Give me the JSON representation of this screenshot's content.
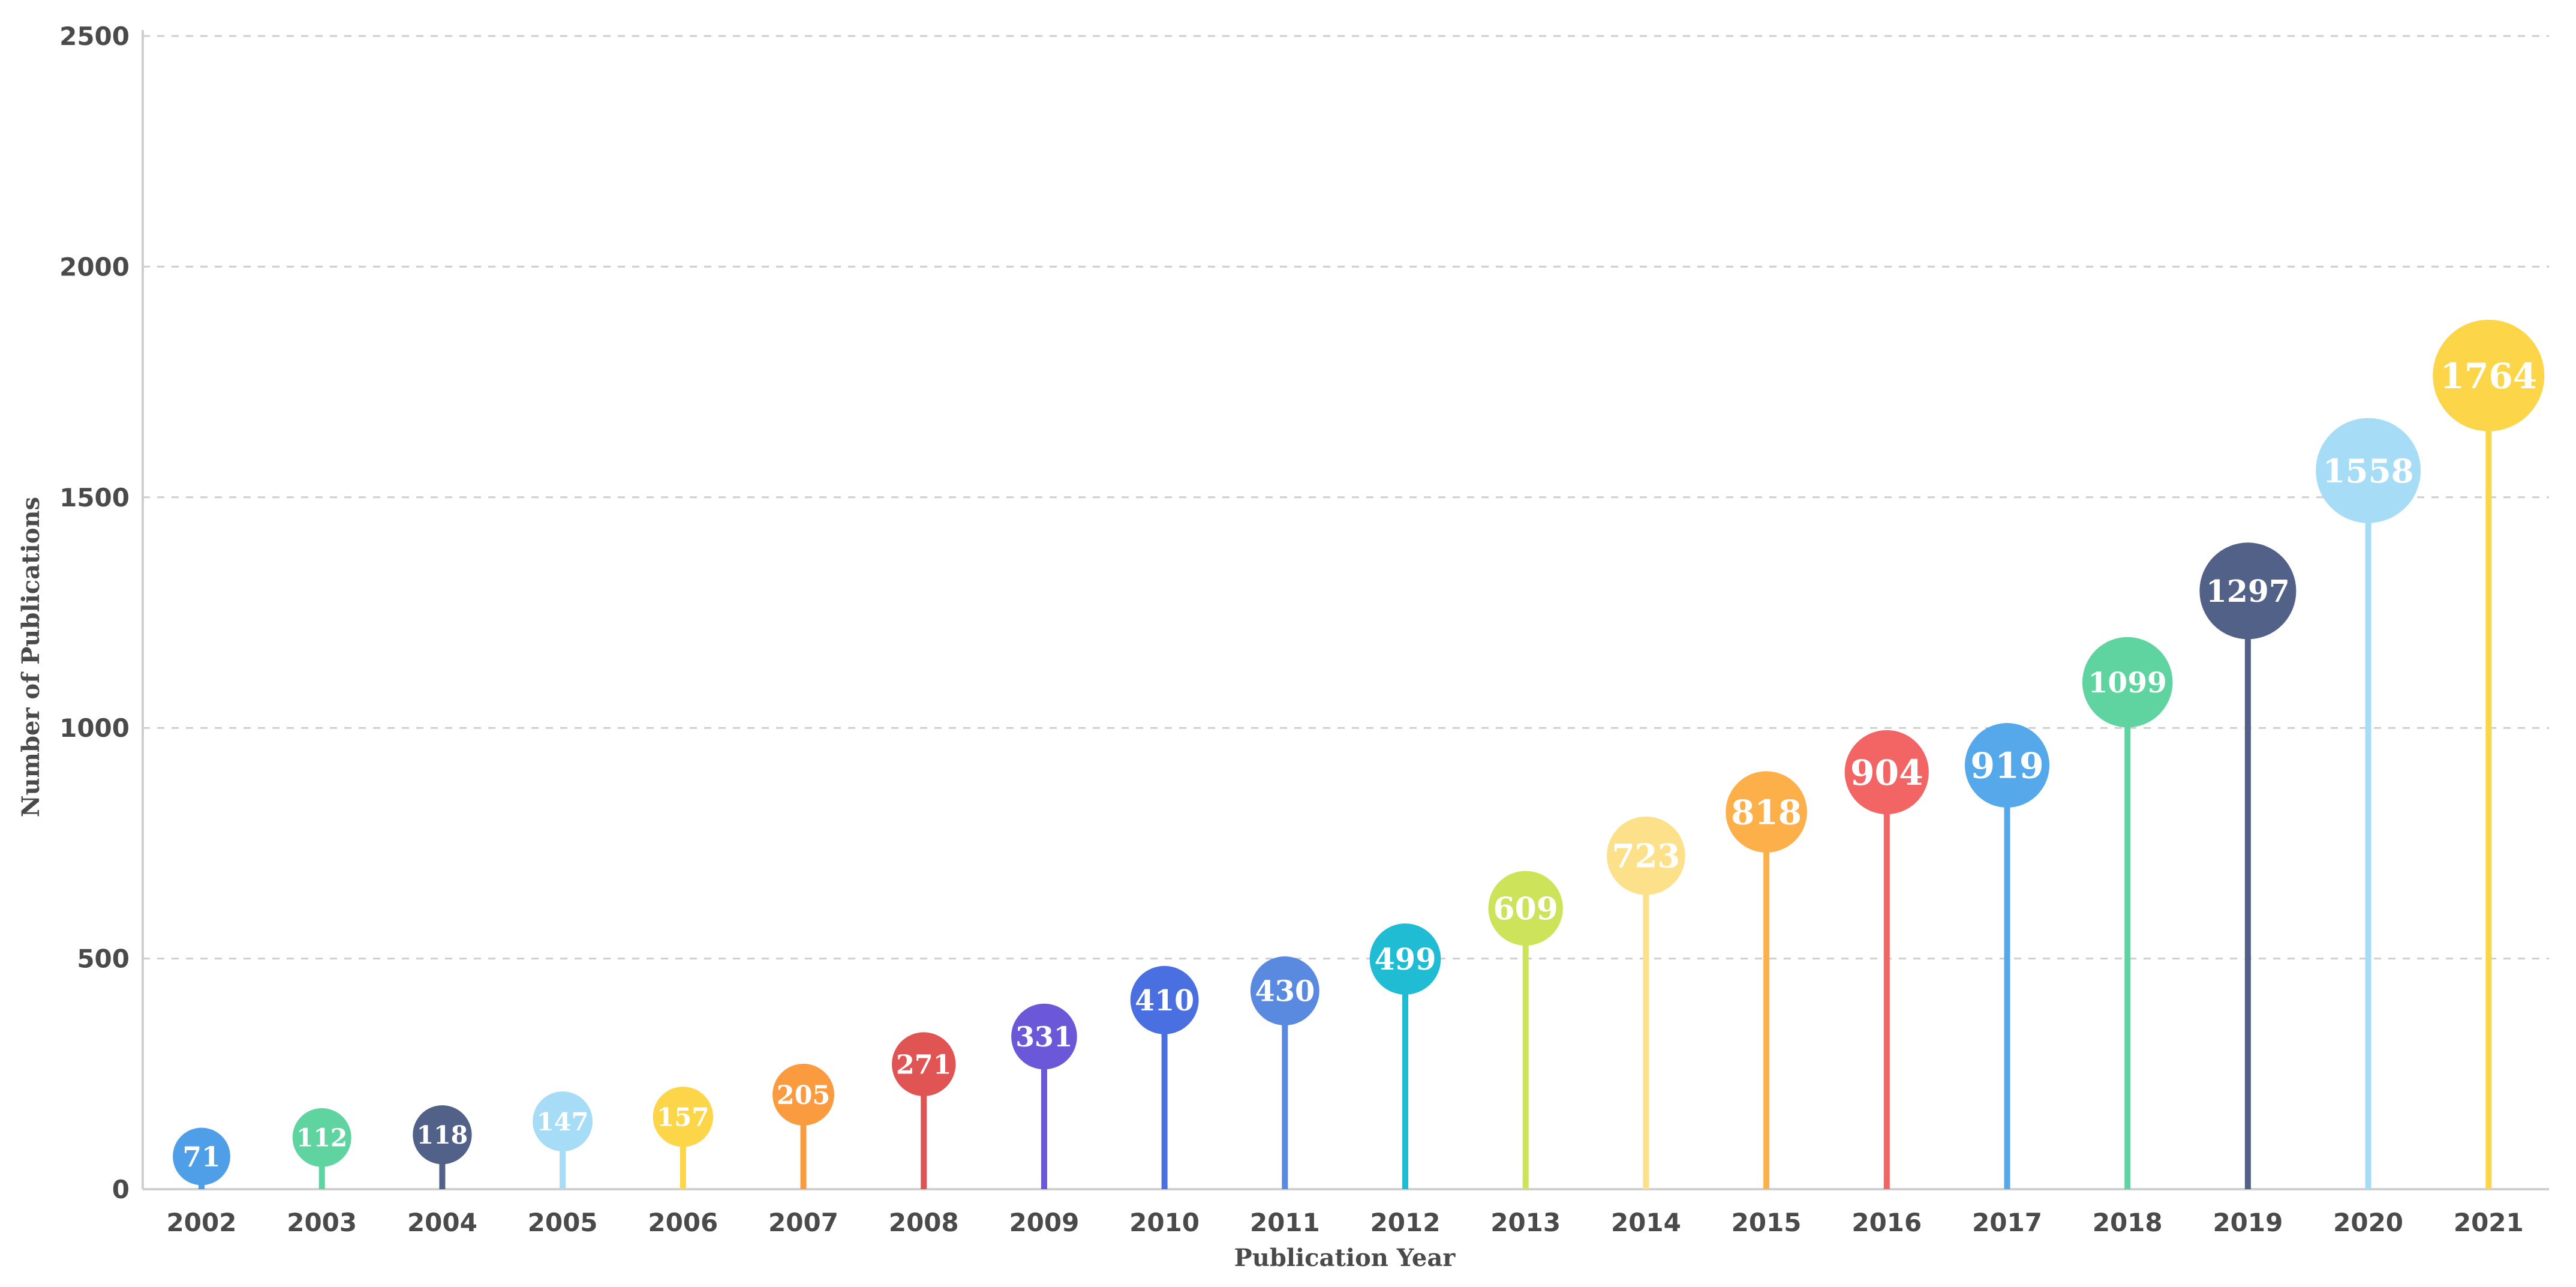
{
  "chart_data": {
    "type": "lollipop",
    "xlabel": "Publication Year",
    "ylabel": "Number of Publications",
    "ylim": [
      0,
      2500
    ],
    "yticks": [
      0,
      500,
      1000,
      1500,
      2000,
      2500
    ],
    "grid": true,
    "categories": [
      "2002",
      "2003",
      "2004",
      "2005",
      "2006",
      "2007",
      "2008",
      "2009",
      "2010",
      "2011",
      "2012",
      "2013",
      "2014",
      "2015",
      "2016",
      "2017",
      "2018",
      "2019",
      "2020",
      "2021"
    ],
    "values": [
      71,
      112,
      118,
      147,
      157,
      205,
      271,
      331,
      410,
      430,
      499,
      609,
      723,
      818,
      904,
      919,
      1099,
      1297,
      1558,
      1764
    ],
    "labels": [
      "71",
      "112",
      "118",
      "147",
      "157",
      "205",
      "271",
      "331",
      "410",
      "430",
      "499",
      "609",
      "723",
      "818",
      "904",
      "919",
      "1099",
      "1297",
      "1558",
      "1764"
    ],
    "colors": [
      "#4f9fe8",
      "#5fd3a0",
      "#526187",
      "#a7dcf7",
      "#fdd548",
      "#fb9b40",
      "#e05454",
      "#6a58d8",
      "#4a6fe0",
      "#5a8ae0",
      "#1fbcd4",
      "#cde45a",
      "#fde08a",
      "#fdb04a",
      "#f36464",
      "#55a8ea",
      "#5fd3a0",
      "#526187",
      "#a7dcf7",
      "#fdd548"
    ]
  }
}
